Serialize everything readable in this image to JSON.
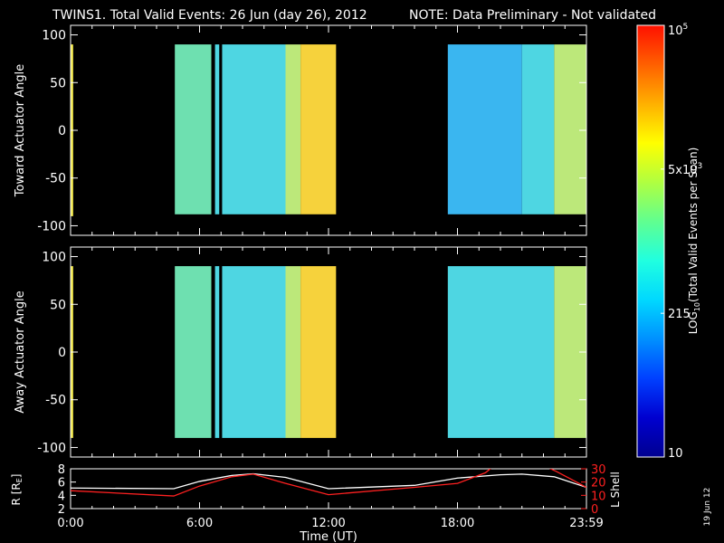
{
  "header": {
    "title": "TWINS1. Total Valid Events: 26 Jun (day  26), 2012",
    "note": "NOTE: Data Preliminary - Not validated",
    "note_color": "#ff2020"
  },
  "side_date": "19 Jun 12",
  "chart_data": [
    {
      "type": "heatmap",
      "panel": "top",
      "ylabel": "Toward Actuator Angle",
      "xlim": [
        0,
        24
      ],
      "ylim": [
        -110,
        110
      ],
      "yticks": [
        "100",
        "50",
        "0",
        "-50",
        "-100"
      ],
      "segments": [
        {
          "x": [
            0.0,
            0.12
          ],
          "y": [
            -90,
            90
          ],
          "level": "yellow"
        },
        {
          "x": [
            4.85,
            6.55
          ],
          "y": [
            -88,
            90
          ],
          "level": "aqua-green"
        },
        {
          "x": [
            6.55,
            6.72
          ],
          "y": [
            -88,
            90
          ],
          "level": "gap"
        },
        {
          "x": [
            6.72,
            6.92
          ],
          "y": [
            -88,
            90
          ],
          "level": "aqua"
        },
        {
          "x": [
            6.92,
            7.05
          ],
          "y": [
            -88,
            90
          ],
          "level": "gap"
        },
        {
          "x": [
            7.05,
            10.0
          ],
          "y": [
            -88,
            90
          ],
          "level": "aqua"
        },
        {
          "x": [
            10.0,
            10.7
          ],
          "y": [
            -88,
            90
          ],
          "level": "yellow-green"
        },
        {
          "x": [
            10.7,
            12.35
          ],
          "y": [
            -88,
            90
          ],
          "level": "yellow-orange"
        },
        {
          "x": [
            17.55,
            21.0
          ],
          "y": [
            -88,
            90
          ],
          "level": "sky-blue"
        },
        {
          "x": [
            21.0,
            22.5
          ],
          "y": [
            -88,
            90
          ],
          "level": "aqua"
        },
        {
          "x": [
            22.5,
            23.99
          ],
          "y": [
            -88,
            90
          ],
          "level": "yellow-green"
        }
      ]
    },
    {
      "type": "heatmap",
      "panel": "middle",
      "ylabel": "Away Actuator Angle",
      "xlim": [
        0,
        24
      ],
      "ylim": [
        -110,
        110
      ],
      "yticks": [
        "100",
        "50",
        "0",
        "-50",
        "-100"
      ],
      "segments": [
        {
          "x": [
            0.0,
            0.12
          ],
          "y": [
            -90,
            90
          ],
          "level": "yellow"
        },
        {
          "x": [
            4.85,
            6.55
          ],
          "y": [
            -90,
            90
          ],
          "level": "aqua-green"
        },
        {
          "x": [
            6.55,
            6.72
          ],
          "y": [
            -90,
            90
          ],
          "level": "gap"
        },
        {
          "x": [
            6.72,
            6.92
          ],
          "y": [
            -90,
            90
          ],
          "level": "aqua"
        },
        {
          "x": [
            6.92,
            7.05
          ],
          "y": [
            -90,
            90
          ],
          "level": "gap"
        },
        {
          "x": [
            7.05,
            10.0
          ],
          "y": [
            -90,
            90
          ],
          "level": "aqua"
        },
        {
          "x": [
            10.0,
            10.7
          ],
          "y": [
            -90,
            90
          ],
          "level": "yellow-green"
        },
        {
          "x": [
            10.7,
            12.35
          ],
          "y": [
            -90,
            90
          ],
          "level": "yellow-orange"
        },
        {
          "x": [
            17.55,
            22.5
          ],
          "y": [
            -90,
            90
          ],
          "level": "aqua"
        },
        {
          "x": [
            22.5,
            23.99
          ],
          "y": [
            -90,
            90
          ],
          "level": "yellow-green"
        }
      ]
    },
    {
      "type": "line",
      "panel": "bottom",
      "xlabel": "Time (UT)",
      "xticks": [
        "0:00",
        "6:00",
        "12:00",
        "18:00",
        "23:59"
      ],
      "xtick_values": [
        0,
        6,
        12,
        18,
        24
      ],
      "left_axis": {
        "label": "R [R",
        "label_sub": "E",
        "label_end": "]",
        "ylim": [
          2,
          8
        ],
        "ticks": [
          "8",
          "6",
          "4",
          "2"
        ]
      },
      "right_axis": {
        "label": "L Shell",
        "ylim": [
          0,
          30
        ],
        "ticks": [
          "30",
          "20",
          "10",
          "0"
        ],
        "color": "#ff2020"
      },
      "series": [
        {
          "axis": "left",
          "color": "#ffffff",
          "x": [
            0,
            4.8,
            6,
            7.5,
            8.5,
            10,
            12,
            16,
            18,
            20,
            21,
            22.5,
            24
          ],
          "y": [
            5.1,
            5.0,
            6.1,
            7.0,
            7.25,
            6.7,
            5.0,
            5.5,
            6.6,
            7.1,
            7.2,
            6.8,
            5.2
          ]
        },
        {
          "axis": "right",
          "color": "#ff2020",
          "x": [
            0,
            4.8,
            6,
            7.5,
            8.5,
            10,
            12,
            16,
            18,
            19.3,
            19.6
          ],
          "y": [
            13.5,
            9.5,
            17,
            24,
            26,
            19,
            10.5,
            16,
            19,
            27,
            31
          ]
        },
        {
          "axis": "right",
          "color": "#ff2020",
          "x": [
            22.2,
            22.6,
            23.3,
            24
          ],
          "y": [
            31,
            28,
            22,
            16
          ]
        }
      ]
    }
  ],
  "colorbar": {
    "label": "LOG",
    "label_sub": "10",
    "label_rest": "(Total Valid  Events per Scan)",
    "tick_labels": [
      "10",
      "215",
      "5x10",
      "10"
    ],
    "tick_sups": [
      "",
      "",
      "3",
      "5"
    ],
    "colors": [
      "#000090",
      "#0000d0",
      "#0040ff",
      "#0090ff",
      "#00d8ff",
      "#20ffe0",
      "#60ff90",
      "#b0ff40",
      "#ffff00",
      "#ffb000",
      "#ff6000",
      "#ff1000"
    ]
  },
  "level_colors": {
    "yellow": "#f2e84a",
    "aqua-green": "#6ee0b0",
    "aqua": "#4ed6e2",
    "sky-blue": "#3ab6f0",
    "yellow-green": "#bce87a",
    "yellow-orange": "#f6d23c",
    "gap": "#000000"
  }
}
